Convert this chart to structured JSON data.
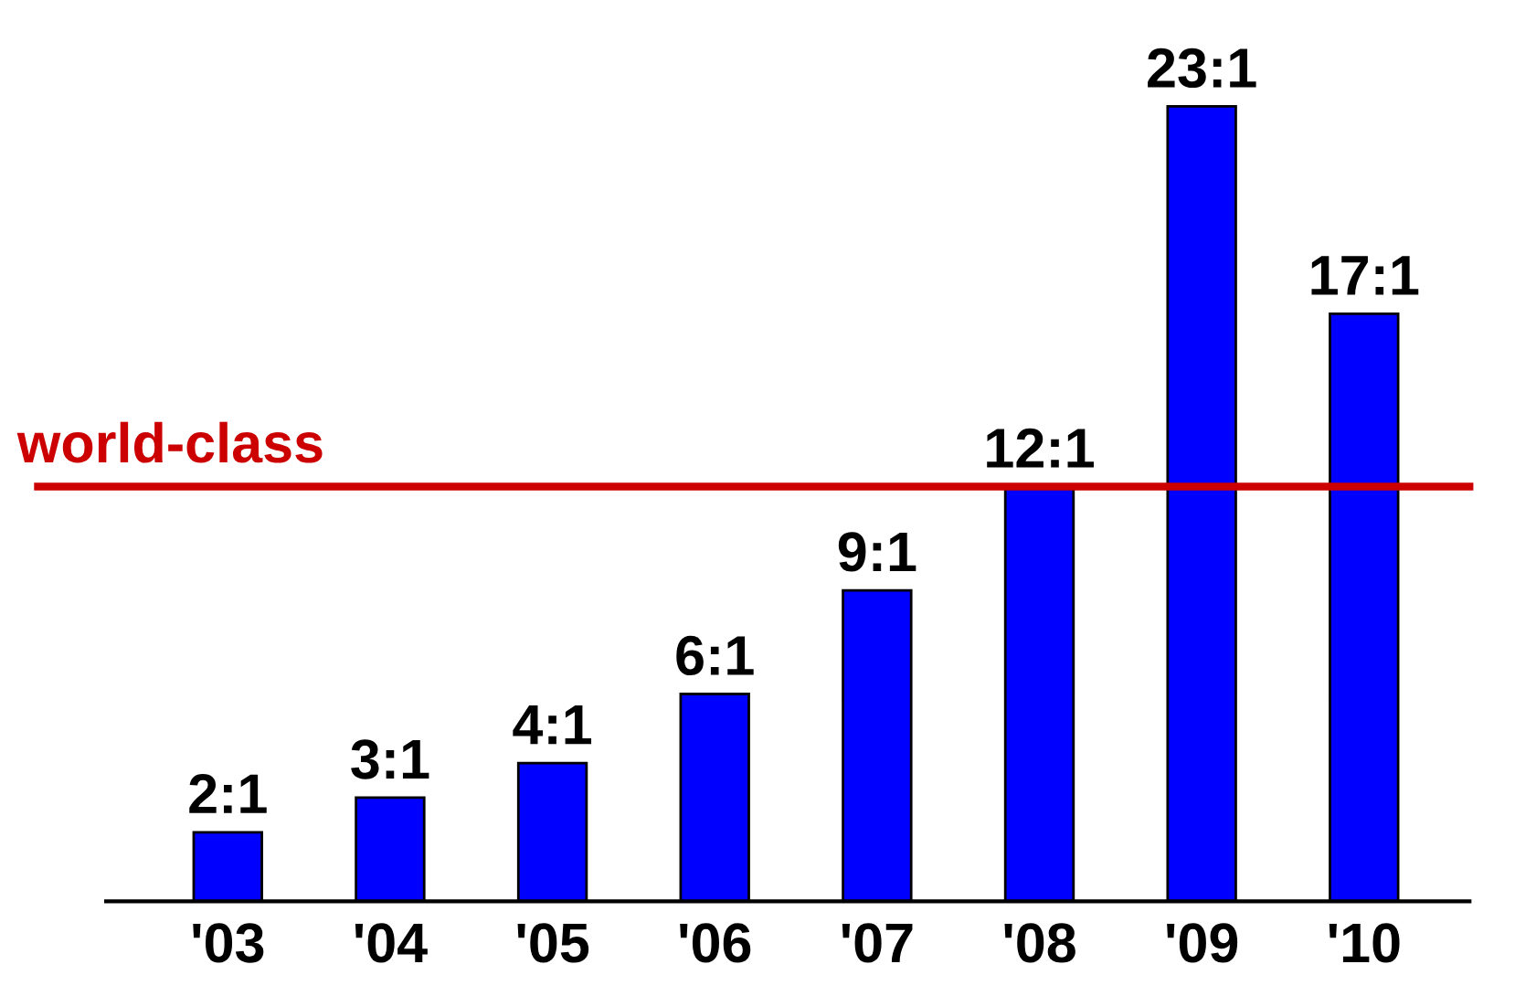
{
  "chart_data": {
    "type": "bar",
    "categories": [
      "'03",
      "'04",
      "'05",
      "'06",
      "'07",
      "'08",
      "'09",
      "'10"
    ],
    "values": [
      2,
      3,
      4,
      6,
      9,
      12,
      23,
      17
    ],
    "value_labels": [
      "2:1",
      "3:1",
      "4:1",
      "6:1",
      "9:1",
      "12:1",
      "23:1",
      "17:1"
    ],
    "color": "#0000ff",
    "ref_lines": [
      {
        "axis": "y",
        "value": 12,
        "label": "world-class",
        "color": "#cc0000"
      }
    ],
    "grid": false,
    "tick_labels": "x"
  }
}
